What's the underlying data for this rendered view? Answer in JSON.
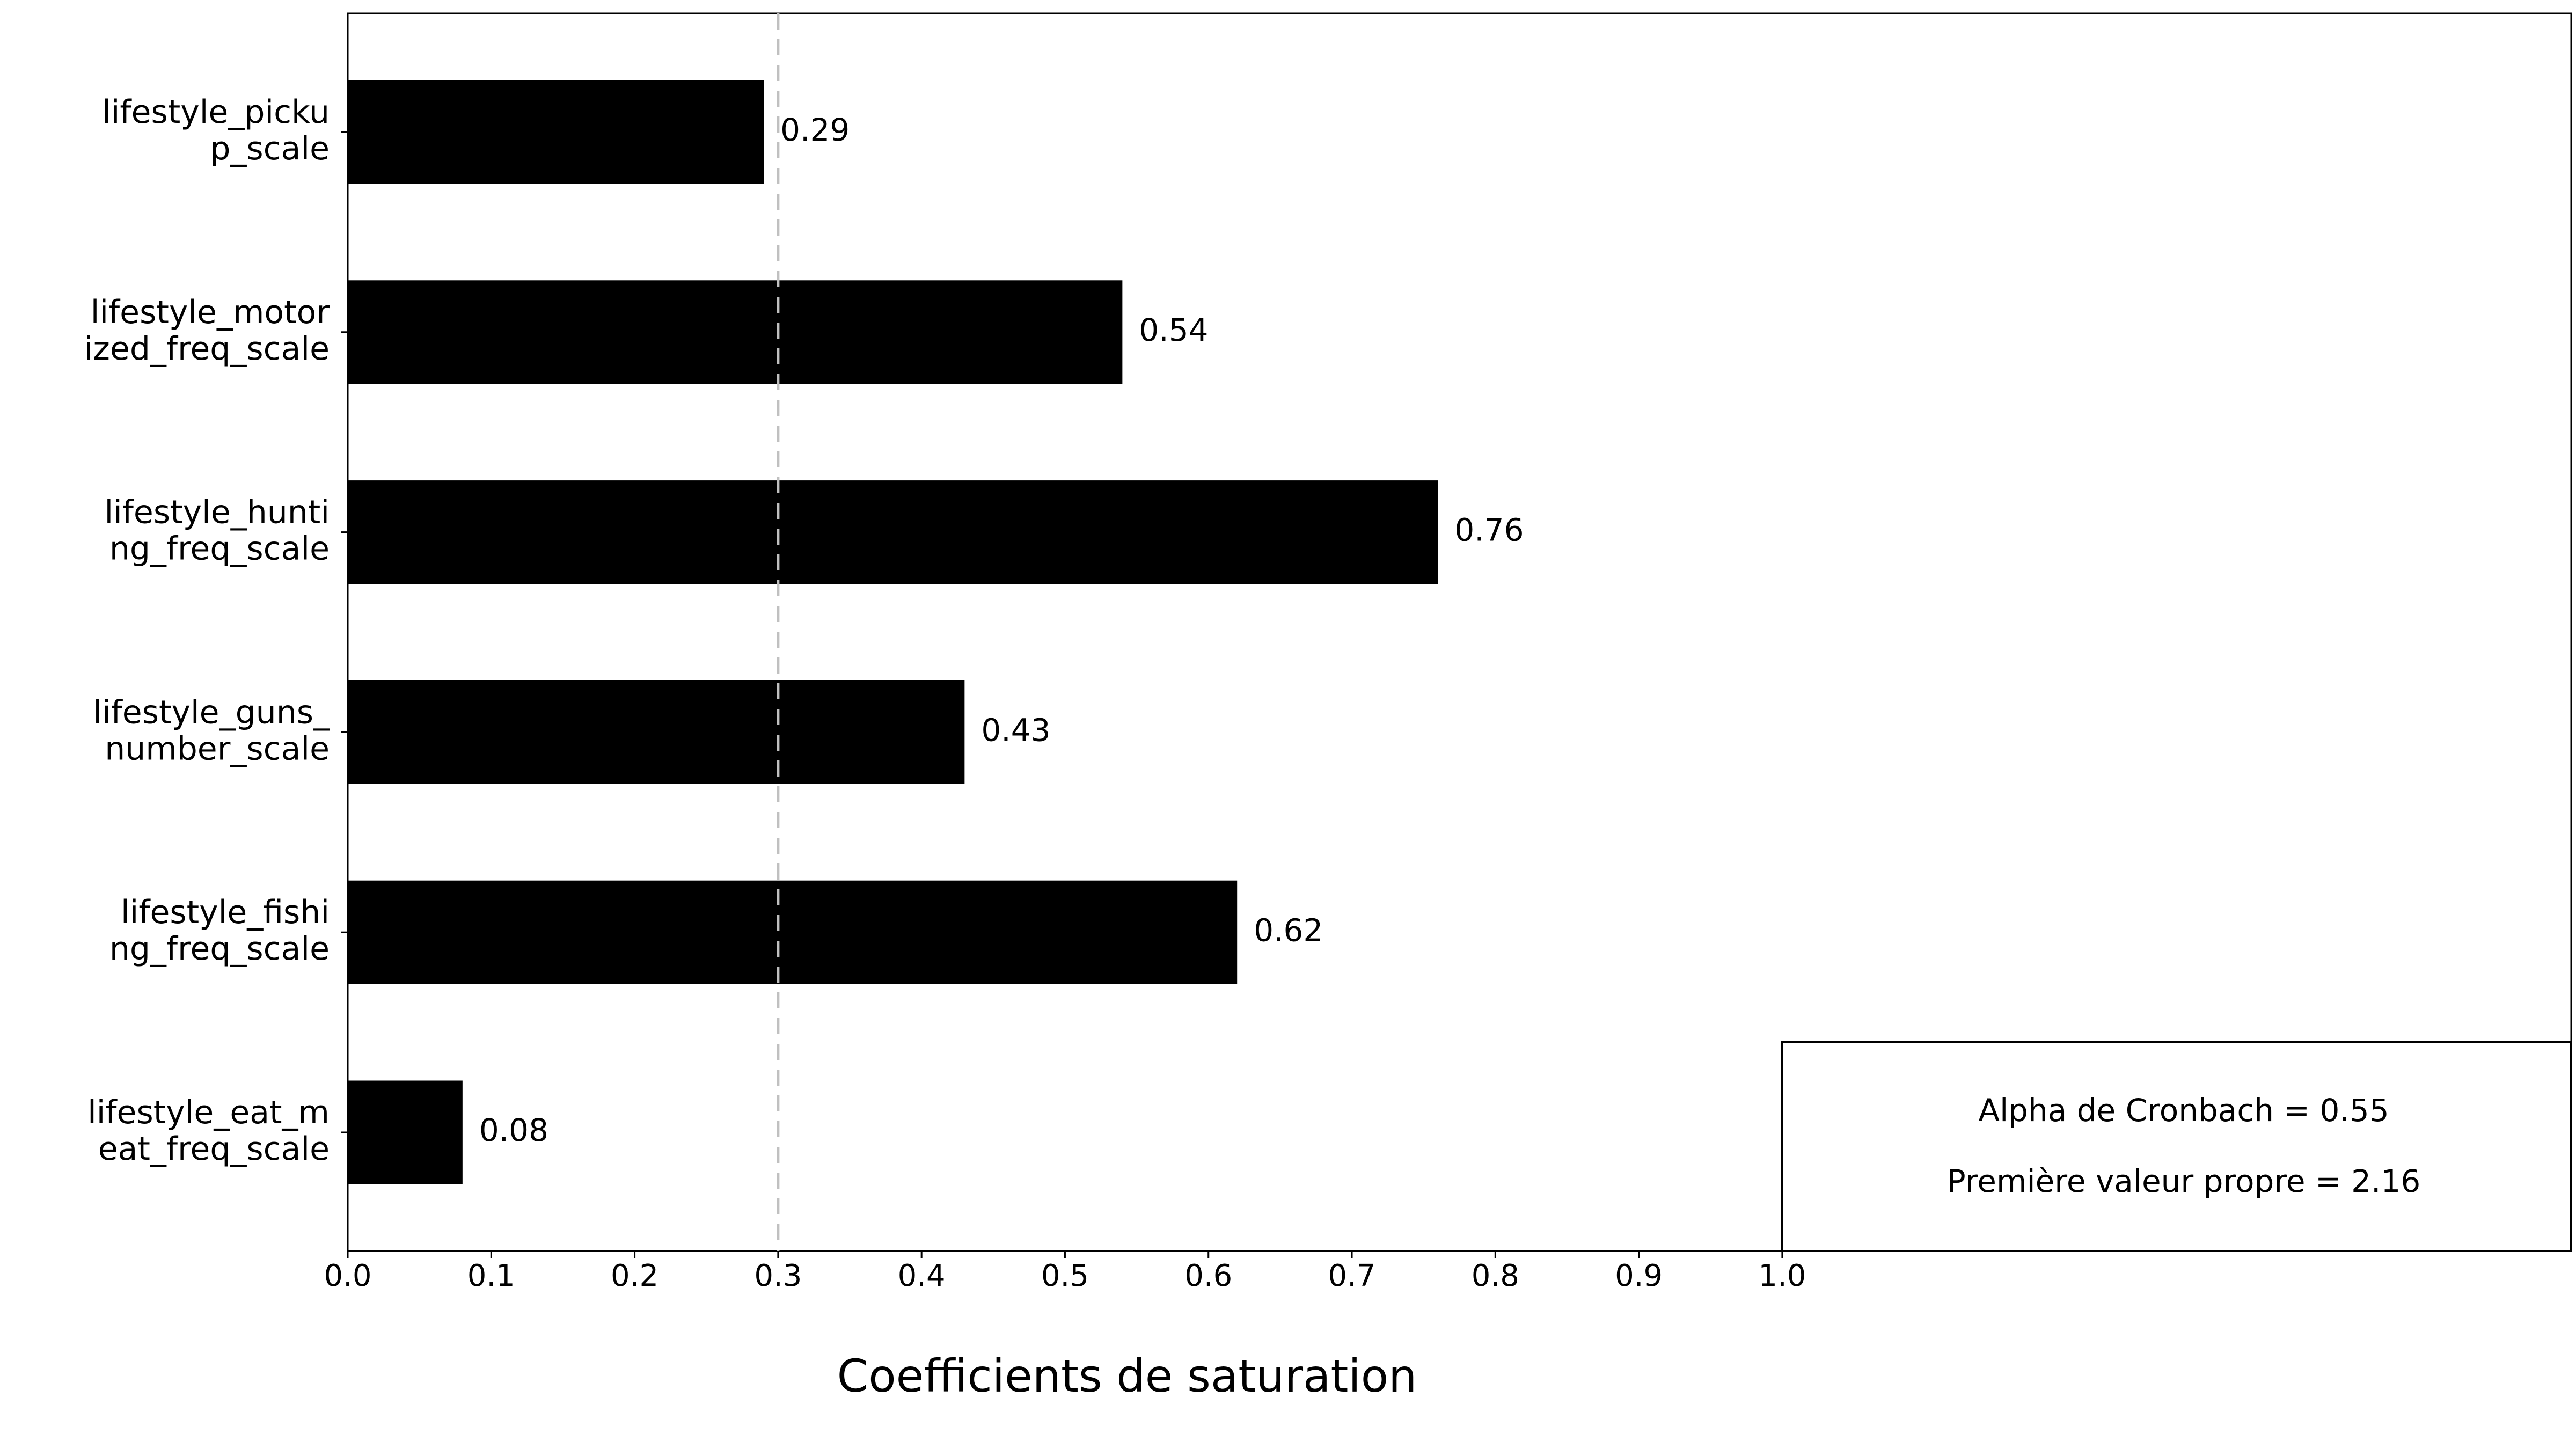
{
  "chart_data": {
    "type": "bar",
    "orientation": "horizontal",
    "x_label": "Coefficients de saturation",
    "categories": [
      [
        "lifestyle_picku",
        "p_scale"
      ],
      [
        "lifestyle_motor",
        "ized_freq_scale"
      ],
      [
        "lifestyle_hunti",
        "ng_freq_scale"
      ],
      [
        "lifestyle_guns_",
        "number_scale"
      ],
      [
        "lifestyle_fishi",
        "ng_freq_scale"
      ],
      [
        "lifestyle_eat_m",
        "eat_freq_scale"
      ]
    ],
    "values": [
      0.29,
      0.54,
      0.76,
      0.43,
      0.62,
      0.08
    ],
    "color": "#000000",
    "xlim": [
      0,
      1.55
    ],
    "xticks": [
      {
        "value": 0,
        "label": "0.0"
      },
      0.1,
      0.2,
      0.3,
      0.4,
      0.5,
      0.6,
      0.7,
      0.8,
      0.9,
      {
        "value": 1,
        "label": "1.0"
      }
    ],
    "reference_line": 0.3,
    "annotations": [
      "Alpha de Cronbach = 0.55",
      "Première valeur propre = 2.16"
    ]
  }
}
